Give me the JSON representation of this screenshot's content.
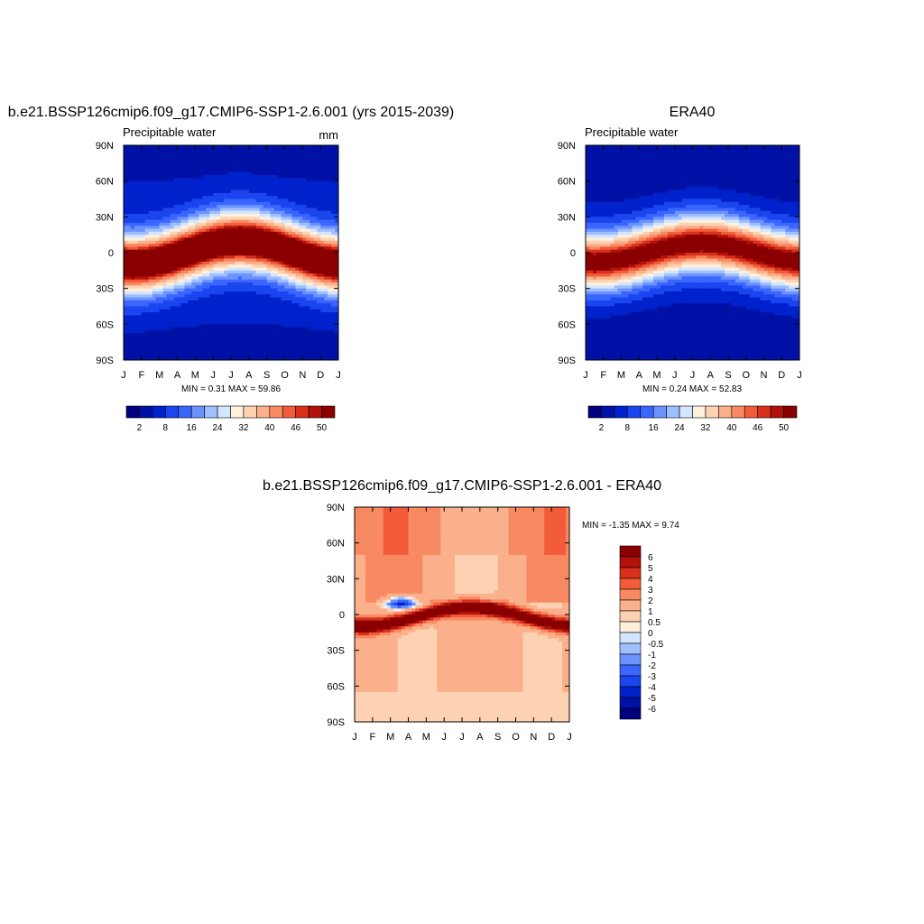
{
  "chart_data": [
    {
      "type": "heatmap",
      "title": "b.e21.BSSP126cmip6.f09_g17.CMIP6-SSP1-2.6.001 (yrs 2015-2039)",
      "left_subtitle": "Precipitable water",
      "right_subtitle": "mm",
      "x_tick_labels": [
        "J",
        "F",
        "M",
        "A",
        "M",
        "J",
        "J",
        "A",
        "S",
        "O",
        "N",
        "D",
        "J"
      ],
      "y_tick_labels": [
        "90N",
        "60N",
        "30N",
        "0",
        "30S",
        "60S",
        "90S"
      ],
      "ylim": [
        -90,
        90
      ],
      "stats": "MIN =   0.31 MAX =  59.86",
      "min": 0.31,
      "max": 59.86,
      "colorbar": {
        "orientation": "horizontal",
        "labels": [
          "2",
          "8",
          "16",
          "24",
          "32",
          "40",
          "46",
          "50"
        ],
        "colors": [
          "#00007f",
          "#0011a6",
          "#0022cc",
          "#1b45ee",
          "#3a66ff",
          "#6c92ff",
          "#a0bfff",
          "#d2e6ff",
          "#fff0dd",
          "#fdd2b3",
          "#fab08b",
          "#f78a63",
          "#f25c3b",
          "#d8301a",
          "#b3120b",
          "#8a0000"
        ]
      },
      "description": "Zonal-mean precipitable water climatology by month; tropical maximum shifting north in boreal summer."
    },
    {
      "type": "heatmap",
      "title": "ERA40",
      "left_subtitle": "Precipitable water",
      "x_tick_labels": [
        "J",
        "F",
        "M",
        "A",
        "M",
        "J",
        "J",
        "A",
        "S",
        "O",
        "N",
        "D",
        "J"
      ],
      "y_tick_labels": [
        "90N",
        "60N",
        "30N",
        "0",
        "30S",
        "60S",
        "90S"
      ],
      "ylim": [
        -90,
        90
      ],
      "stats": "MIN =   0.24 MAX =  52.83",
      "min": 0.24,
      "max": 52.83,
      "colorbar": {
        "orientation": "horizontal",
        "labels": [
          "2",
          "8",
          "16",
          "24",
          "32",
          "40",
          "46",
          "50"
        ],
        "colors": [
          "#00007f",
          "#0011a6",
          "#0022cc",
          "#1b45ee",
          "#3a66ff",
          "#6c92ff",
          "#a0bfff",
          "#d2e6ff",
          "#fff0dd",
          "#fdd2b3",
          "#fab08b",
          "#f78a63",
          "#f25c3b",
          "#d8301a",
          "#b3120b",
          "#8a0000"
        ]
      }
    },
    {
      "type": "heatmap",
      "title": "b.e21.BSSP126cmip6.f09_g17.CMIP6-SSP1-2.6.001 - ERA40",
      "x_tick_labels": [
        "J",
        "F",
        "M",
        "A",
        "M",
        "J",
        "J",
        "A",
        "S",
        "O",
        "N",
        "D",
        "J"
      ],
      "y_tick_labels": [
        "90N",
        "60N",
        "30N",
        "0",
        "30S",
        "60S",
        "90S"
      ],
      "ylim": [
        -90,
        90
      ],
      "stats": "MIN =  -1.35 MAX =   9.74",
      "min": -1.35,
      "max": 9.74,
      "colorbar": {
        "orientation": "vertical",
        "labels": [
          "6",
          "5",
          "4",
          "3",
          "2",
          "1",
          "0.5",
          "0",
          "-0.5",
          "-1",
          "-2",
          "-3",
          "-4",
          "-5",
          "-6"
        ],
        "colors": [
          "#8a0000",
          "#b3120b",
          "#d8301a",
          "#f25c3b",
          "#f78a63",
          "#fab08b",
          "#fdd2b3",
          "#fff0dd",
          "#d2e6ff",
          "#a0bfff",
          "#6c92ff",
          "#3a66ff",
          "#1b45ee",
          "#0022cc",
          "#0011a6",
          "#00007f"
        ]
      }
    }
  ]
}
